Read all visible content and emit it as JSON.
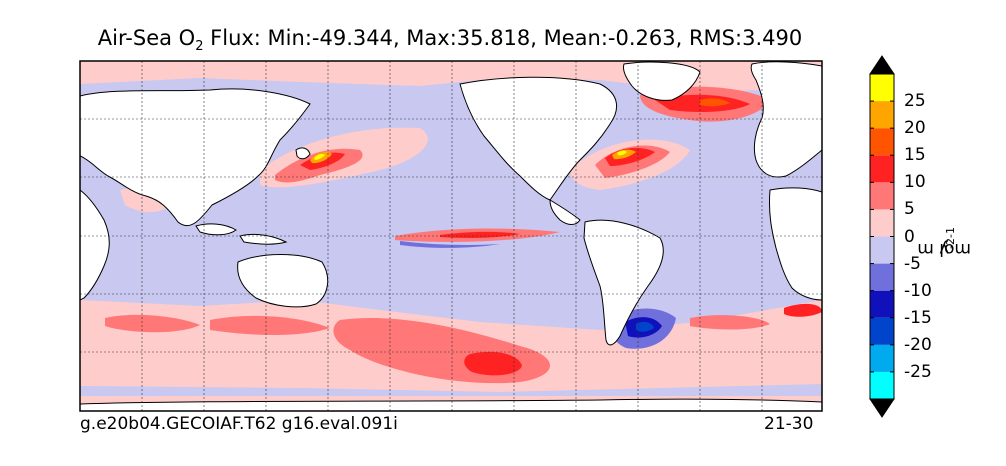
{
  "title": {
    "prefix": "Air-Sea O",
    "subscript": "2",
    "suffix": " Flux: Min:-49.344, Max:35.818, Mean:-0.263, RMS:3.490"
  },
  "footer": {
    "left": "g.e20b04.GECOIAF.T62 g16.eval.091i",
    "right": "21-30"
  },
  "colorbar": {
    "unit": {
      "a": "mol m",
      "exp1": "-2",
      "b": " y",
      "exp2": "-1"
    },
    "ticks": [
      "25",
      "20",
      "15",
      "10",
      "5",
      "0",
      "-5",
      "-10",
      "-15",
      "-20",
      "-25"
    ],
    "colors": [
      "#00ffff",
      "#00aaee",
      "#0044cc",
      "#1111bb",
      "#7070dd",
      "#c8c8f0",
      "#ffcccc",
      "#ff7777",
      "#ff2222",
      "#ff5500",
      "#ffa500",
      "#ffff00"
    ],
    "extend": "both"
  },
  "map": {
    "projection": "cylindrical",
    "land_color": "#ffffff",
    "base_color": "#c8c8f0",
    "gridlines": "dashed"
  }
}
